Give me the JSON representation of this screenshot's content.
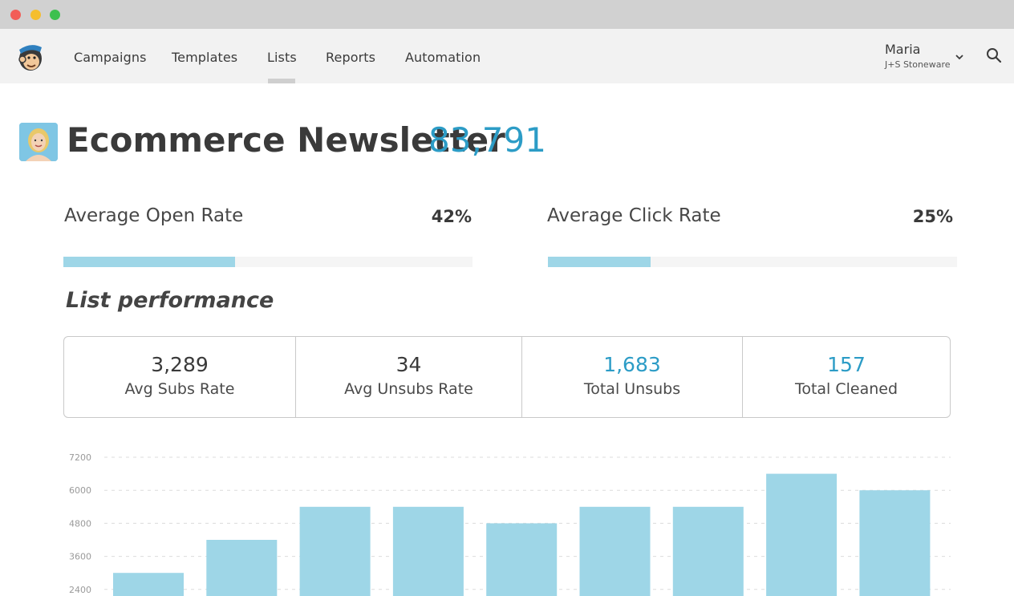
{
  "nav": {
    "items": [
      {
        "label": "Campaigns"
      },
      {
        "label": "Templates"
      },
      {
        "label": "Lists"
      },
      {
        "label": "Reports"
      },
      {
        "label": "Automation"
      }
    ],
    "active": "Lists",
    "user": {
      "name": "Maria",
      "company": "J+S Stoneware"
    }
  },
  "header": {
    "title": "Ecommerce Newsletter",
    "count": "83,791"
  },
  "metrics": [
    {
      "label": "Average Open Rate",
      "value": "42%",
      "fraction": 0.42
    },
    {
      "label": "Average Click Rate",
      "value": "25%",
      "fraction": 0.25
    }
  ],
  "section": {
    "heading": "List performance"
  },
  "stats": [
    {
      "value": "3,289",
      "label": "Avg Subs Rate"
    },
    {
      "value": "34",
      "label": "Avg Unsubs Rate"
    },
    {
      "value": "1,683",
      "label": "Total Unsubs"
    },
    {
      "value": "157",
      "label": "Total Cleaned"
    }
  ],
  "colors": {
    "accent": "#2c9cc6",
    "bar": "#9ed6e7"
  },
  "chart_data": {
    "type": "bar",
    "yticks": [
      "7200",
      "6000",
      "4800",
      "3600",
      "2400"
    ],
    "ylim": [
      2400,
      7200
    ],
    "values": [
      3000,
      4200,
      5400,
      5400,
      4800,
      5400,
      5400,
      6600,
      6000
    ],
    "grid": true
  }
}
